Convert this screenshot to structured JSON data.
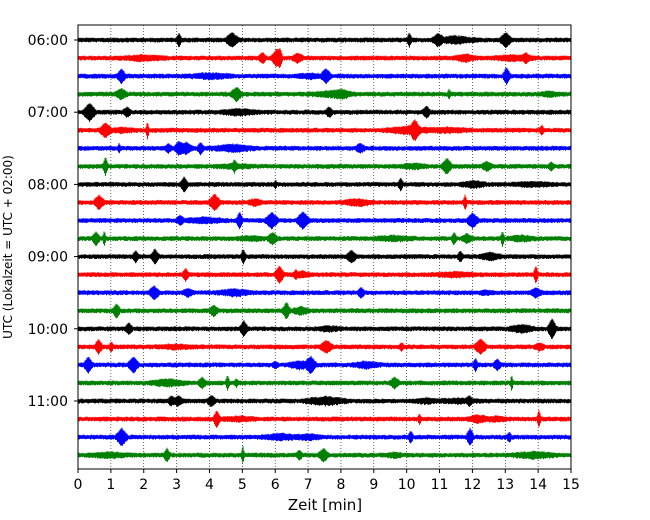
{
  "chart_data": {
    "type": "line",
    "title": "",
    "xlabel": "Zeit  [min]",
    "ylabel": "UTC (Lokalzeit = UTC + 02:00)",
    "xlim": [
      0,
      15
    ],
    "x_ticks": [
      "0",
      "1",
      "2",
      "3",
      "4",
      "5",
      "6",
      "7",
      "8",
      "9",
      "10",
      "11",
      "12",
      "13",
      "14",
      "15"
    ],
    "y_ticks": [
      "06:00",
      "07:00",
      "08:00",
      "09:00",
      "10:00",
      "11:00"
    ],
    "row_interval_minutes": 15,
    "grid": true,
    "rows": [
      {
        "start": "06:00",
        "color": "#000000"
      },
      {
        "start": "06:15",
        "color": "#ff0000"
      },
      {
        "start": "06:30",
        "color": "#0000ff"
      },
      {
        "start": "06:45",
        "color": "#008000"
      },
      {
        "start": "07:00",
        "color": "#000000"
      },
      {
        "start": "07:15",
        "color": "#ff0000"
      },
      {
        "start": "07:30",
        "color": "#0000ff"
      },
      {
        "start": "07:45",
        "color": "#008000"
      },
      {
        "start": "08:00",
        "color": "#000000"
      },
      {
        "start": "08:15",
        "color": "#ff0000"
      },
      {
        "start": "08:30",
        "color": "#0000ff"
      },
      {
        "start": "08:45",
        "color": "#008000"
      },
      {
        "start": "09:00",
        "color": "#000000"
      },
      {
        "start": "09:15",
        "color": "#ff0000"
      },
      {
        "start": "09:30",
        "color": "#0000ff"
      },
      {
        "start": "09:45",
        "color": "#008000"
      },
      {
        "start": "10:00",
        "color": "#000000"
      },
      {
        "start": "10:15",
        "color": "#ff0000"
      },
      {
        "start": "10:30",
        "color": "#0000ff"
      },
      {
        "start": "10:45",
        "color": "#008000"
      },
      {
        "start": "11:00",
        "color": "#000000"
      },
      {
        "start": "11:15",
        "color": "#ff0000"
      },
      {
        "start": "11:30",
        "color": "#0000ff"
      },
      {
        "start": "11:45",
        "color": "#008000"
      }
    ]
  }
}
